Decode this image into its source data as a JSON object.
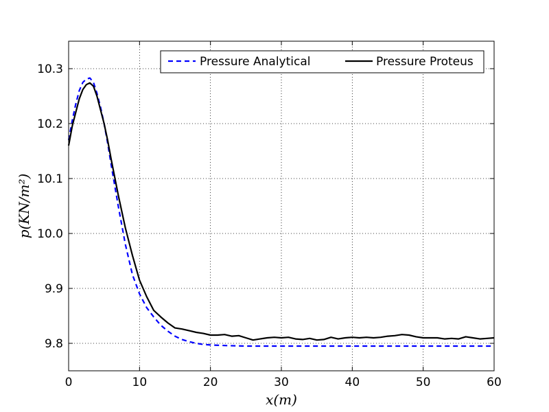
{
  "chart_data": {
    "type": "line",
    "xlabel": "x(m)",
    "ylabel": "p(KN/m²)",
    "xlim": [
      0,
      60
    ],
    "ylim": [
      9.75,
      10.35
    ],
    "xticks": [
      0,
      10,
      20,
      30,
      40,
      50,
      60
    ],
    "yticks": [
      9.8,
      9.9,
      10.0,
      10.1,
      10.2,
      10.3
    ],
    "xtick_labels": [
      "0",
      "10",
      "20",
      "30",
      "40",
      "50",
      "60"
    ],
    "ytick_labels": [
      "9.8",
      "9.9",
      "10.0",
      "10.1",
      "10.2",
      "10.3"
    ],
    "grid": true,
    "legend_position": "top-right",
    "series": [
      {
        "name": "Pressure Analytical",
        "color": "#0000ff",
        "style": "dashed",
        "x": [
          0,
          0.5,
          1,
          1.5,
          2,
          2.5,
          3,
          3.5,
          4,
          4.5,
          5,
          5.5,
          6,
          7,
          8,
          9,
          10,
          11,
          12,
          13,
          14,
          15,
          16,
          17,
          18,
          19,
          20,
          22,
          25,
          30,
          35,
          40,
          45,
          50,
          55,
          60
        ],
        "y": [
          10.17,
          10.205,
          10.235,
          10.26,
          10.275,
          10.281,
          10.283,
          10.275,
          10.255,
          10.23,
          10.2,
          10.165,
          10.125,
          10.05,
          9.98,
          9.925,
          9.89,
          9.865,
          9.848,
          9.833,
          9.822,
          9.813,
          9.807,
          9.803,
          9.8,
          9.798,
          9.797,
          9.796,
          9.795,
          9.795,
          9.795,
          9.795,
          9.795,
          9.795,
          9.795,
          9.795
        ]
      },
      {
        "name": "Pressure Proteus",
        "color": "#000000",
        "style": "solid",
        "x": [
          0,
          0.5,
          1,
          1.5,
          2,
          2.5,
          3,
          3.5,
          4,
          4.5,
          5,
          5.5,
          6,
          7,
          8,
          9,
          10,
          11,
          12,
          13,
          14,
          15,
          16,
          17,
          18,
          19,
          20,
          21,
          22,
          23,
          24,
          25,
          26,
          27,
          28,
          29,
          30,
          31,
          32,
          33,
          34,
          35,
          36,
          37,
          38,
          39,
          40,
          41,
          42,
          43,
          44,
          45,
          46,
          47,
          48,
          49,
          50,
          51,
          52,
          53,
          54,
          55,
          56,
          57,
          58,
          59,
          60
        ],
        "y": [
          10.16,
          10.195,
          10.22,
          10.245,
          10.262,
          10.271,
          10.274,
          10.268,
          10.25,
          10.225,
          10.2,
          10.17,
          10.135,
          10.07,
          10.01,
          9.96,
          9.915,
          9.885,
          9.86,
          9.848,
          9.837,
          9.828,
          9.826,
          9.823,
          9.82,
          9.818,
          9.815,
          9.815,
          9.816,
          9.813,
          9.814,
          9.81,
          9.806,
          9.808,
          9.81,
          9.811,
          9.81,
          9.811,
          9.808,
          9.807,
          9.809,
          9.806,
          9.807,
          9.811,
          9.808,
          9.81,
          9.811,
          9.81,
          9.811,
          9.81,
          9.811,
          9.813,
          9.814,
          9.816,
          9.815,
          9.812,
          9.81,
          9.81,
          9.81,
          9.808,
          9.809,
          9.808,
          9.812,
          9.81,
          9.808,
          9.809,
          9.81
        ]
      }
    ]
  }
}
